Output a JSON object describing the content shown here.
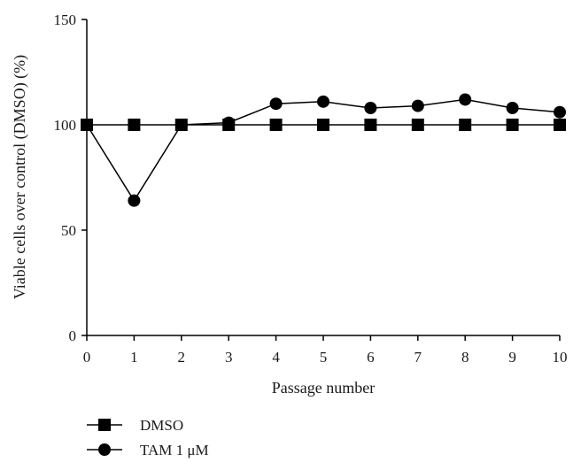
{
  "chart_data": {
    "type": "line",
    "xlabel": "Passage number",
    "ylabel": "Viable cells over control (DMSO) (%)",
    "xlim": [
      0,
      10
    ],
    "ylim": [
      0,
      150
    ],
    "x": [
      0,
      1,
      2,
      3,
      4,
      5,
      6,
      7,
      8,
      9,
      10
    ],
    "xticks": [
      "0",
      "1",
      "2",
      "3",
      "4",
      "5",
      "6",
      "7",
      "8",
      "9",
      "10"
    ],
    "yticks": [
      "0",
      "50",
      "100",
      "150"
    ],
    "grid": false,
    "legend_position": "bottom-left",
    "series": [
      {
        "name": "DMSO",
        "marker": "square",
        "color": "#000000",
        "values": [
          100,
          100,
          100,
          100,
          100,
          100,
          100,
          100,
          100,
          100,
          100
        ]
      },
      {
        "name": "TAM 1 μM",
        "marker": "circle",
        "color": "#000000",
        "values": [
          100,
          64,
          100,
          101,
          110,
          111,
          108,
          109,
          112,
          108,
          106
        ]
      }
    ]
  }
}
